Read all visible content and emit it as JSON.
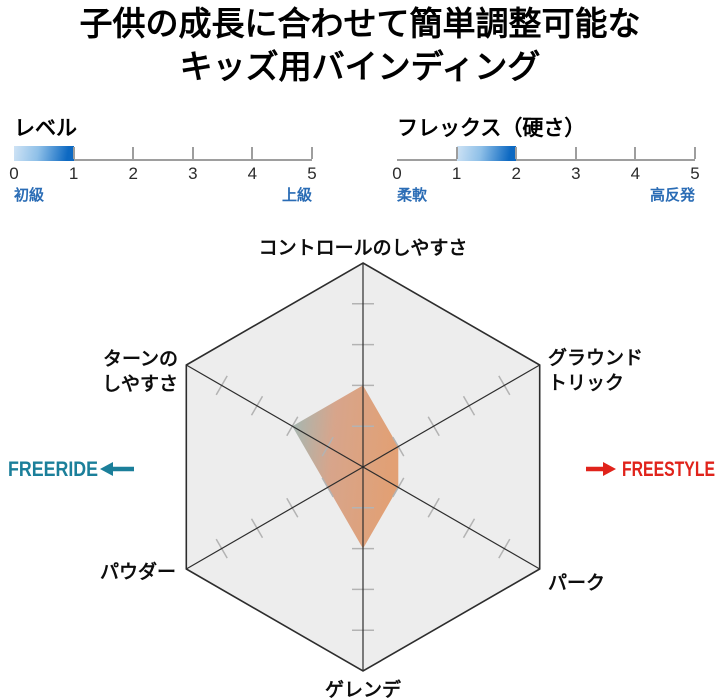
{
  "title": {
    "line1": "子供の成長に合わせて簡単調整可能な",
    "line2": "キッズ用バインディング"
  },
  "chart_data": [
    {
      "type": "scale-bar",
      "title": "レベル",
      "range": [
        0,
        5
      ],
      "tick_labels": [
        "0",
        "1",
        "2",
        "3",
        "4",
        "5"
      ],
      "filled_from": 0,
      "filled_to": 1,
      "min_label": "初級",
      "max_label": "上級"
    },
    {
      "type": "scale-bar",
      "title": "フレックス（硬さ）",
      "range": [
        0,
        5
      ],
      "tick_labels": [
        "0",
        "1",
        "2",
        "3",
        "4",
        "5"
      ],
      "filled_from": 1,
      "filled_to": 2,
      "min_label": "柔軟",
      "max_label": "高反発"
    },
    {
      "type": "radar",
      "axes": [
        "コントロールのしやすさ",
        "グラウンド\nトリック",
        "パーク",
        "ゲレンデ",
        "パウダー",
        "ターンの\nしやすさ"
      ],
      "values": [
        2,
        1,
        1,
        2,
        1,
        2
      ],
      "max": 5,
      "grid": "hexagon, ticks at 1,2,3,4",
      "annotations": {
        "left": "FREERIDE",
        "right": "FREESTYLE"
      }
    }
  ],
  "colors": {
    "bar_light": "#cfe3f5",
    "bar_dark": "#0d69c2",
    "label_blue": "#2a6cb5",
    "freeride_teal": "#1b7f9a",
    "freestyle_red": "#e0231b",
    "radar_teal": "#9db6b2",
    "radar_mid": "#d6a186",
    "radar_orange": "#e19c6e",
    "hex_fill": "#ededed",
    "line_dark": "#2d2d2d",
    "tick_gray": "#b3b3b3"
  }
}
